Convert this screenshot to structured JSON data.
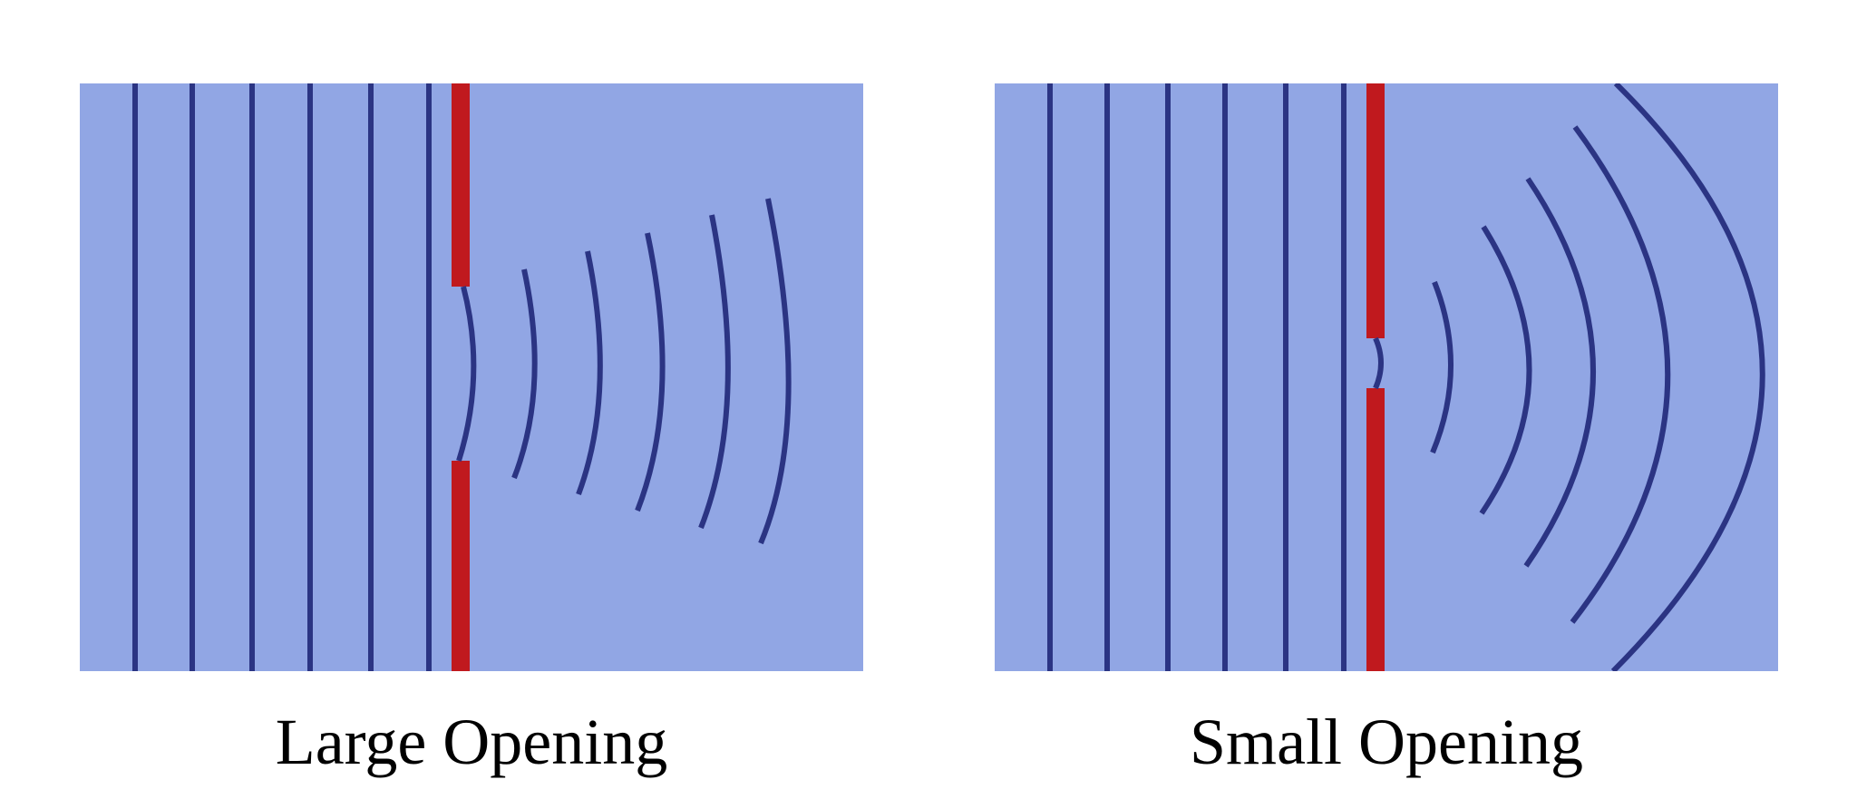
{
  "colors": {
    "medium": "#91a6e4",
    "wavefront": "#2b3483",
    "barrier": "#c0191e",
    "background": "#ffffff"
  },
  "panels": [
    {
      "id": "large",
      "caption": "Large Opening",
      "incoming_wavefronts": 6,
      "diffracted_wavefronts": 6,
      "opening": "large"
    },
    {
      "id": "small",
      "caption": "Small Opening",
      "incoming_wavefronts": 6,
      "diffracted_wavefronts": 6,
      "opening": "small"
    }
  ]
}
